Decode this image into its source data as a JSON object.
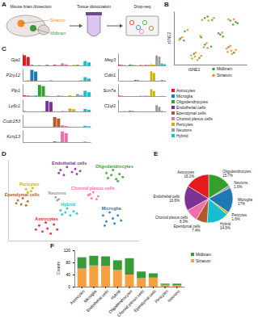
{
  "panels": [
    "A",
    "B",
    "C",
    "D",
    "E",
    "F"
  ],
  "diagram": {
    "steps": [
      "Mouse brain dissection",
      "Tissue dissociation",
      "Drop-seq"
    ],
    "regions": [
      {
        "name": "Striatum",
        "color": "#f28c28"
      },
      {
        "name": "Midbrain",
        "color": "#3a9a3a"
      }
    ]
  },
  "chart_data": [
    {
      "type": "scatter",
      "xlabel": "tSNE1",
      "ylabel": "tSNE2",
      "xlim": [
        -40,
        40
      ],
      "ylim": [
        -40,
        40
      ],
      "tick_labels": false,
      "legend": "bottom right",
      "series": [
        {
          "name": "Midbrain",
          "color": "#3a9a3a",
          "x": [
            -6,
            2,
            22,
            28,
            25,
            -28,
            11,
            14,
            -33,
            -29,
            -10,
            -6,
            1,
            20,
            26,
            -18,
            -12,
            30,
            -3,
            9
          ],
          "y": [
            30,
            27,
            26,
            24,
            20,
            10,
            5,
            2,
            -1,
            -4,
            1,
            -10,
            -13,
            -14,
            -22,
            -24,
            -30,
            22,
            32,
            7
          ]
        },
        {
          "name": "Striatum",
          "color": "#f28c28",
          "x": [
            -9,
            -2,
            4,
            20,
            26,
            -25,
            13,
            -34,
            -31,
            -11,
            -4,
            -7,
            -3,
            18,
            22,
            28,
            24,
            19,
            -21,
            -16,
            -14,
            -20,
            -10,
            -17,
            23
          ],
          "y": [
            27,
            26,
            30,
            28,
            28,
            12,
            8,
            -3,
            1,
            3,
            -8,
            -14,
            -15,
            -16,
            -12,
            -18,
            -24,
            -21,
            -26,
            -22,
            -33,
            -31,
            -27,
            -28,
            -19
          ]
        }
      ]
    },
    {
      "type": "bar",
      "tick_labels": false,
      "ylim": [
        0,
        5
      ],
      "clusters": [
        {
          "name": "Astrocytes",
          "color": "#e41a1c"
        },
        {
          "name": "Microglia",
          "color": "#1f78b4"
        },
        {
          "name": "Oligodendrocytes",
          "color": "#33a02c"
        },
        {
          "name": "Endothelial cells",
          "color": "#7b3294"
        },
        {
          "name": "Ependymal cells",
          "color": "#b15928"
        },
        {
          "name": "Choroid plexus cells",
          "color": "#f06eaa"
        },
        {
          "name": "Pericytes",
          "color": "#c9b400"
        },
        {
          "name": "Neurons",
          "color": "#999999"
        },
        {
          "name": "Hybrid",
          "color": "#17becf"
        }
      ],
      "series": [
        {
          "name": "Gja1",
          "values": [
            4.2,
            3.5,
            0.2,
            0,
            0.1,
            0,
            0.2,
            0,
            0.3,
            0.1,
            0.8,
            0.4,
            0,
            0.2,
            0.3,
            0,
            1.8,
            1.2
          ]
        },
        {
          "name": "P2ry12",
          "values": [
            0,
            0.1,
            4.5,
            3.8,
            0,
            0,
            0,
            0.1,
            0,
            0,
            0,
            0,
            0,
            0,
            0,
            0.2,
            1.5,
            0.9
          ]
        },
        {
          "name": "Plp1",
          "values": [
            0.3,
            0.2,
            0.1,
            0.2,
            4.6,
            4.1,
            0.1,
            0,
            0,
            0.2,
            0.1,
            0,
            0.3,
            0,
            0.8,
            0.4,
            2.2,
            1.6
          ]
        },
        {
          "name": "Ly6c1",
          "values": [
            0.1,
            0,
            0,
            0,
            0,
            0.1,
            4.3,
            3.9,
            0,
            0,
            0.2,
            0.1,
            1.2,
            0.9,
            0,
            0,
            1.0,
            0.7
          ]
        },
        {
          "name": "Ccdc153",
          "values": [
            0,
            0,
            0,
            0,
            0,
            0,
            0,
            0,
            4.0,
            3.4,
            0.6,
            0.3,
            0,
            0,
            0,
            0,
            0.4,
            0.2
          ]
        },
        {
          "name": "Kcnj13",
          "values": [
            0,
            0,
            0,
            0,
            0,
            0,
            0,
            0,
            0.3,
            0.1,
            4.4,
            3.7,
            0,
            0,
            0,
            0,
            0.2,
            0
          ]
        },
        {
          "name": "Meg3",
          "values": [
            0.3,
            0.2,
            0.1,
            0,
            0.4,
            0.2,
            0.1,
            0,
            0.2,
            0.1,
            0.3,
            0.2,
            0.5,
            0.3,
            4.1,
            3.6,
            0.8,
            0.5
          ]
        },
        {
          "name": "Cdkl1",
          "values": [
            0,
            0,
            0,
            0,
            0,
            0,
            0.3,
            0.2,
            0,
            0,
            0,
            0,
            3.9,
            3.2,
            0,
            0,
            0.3,
            0.1
          ]
        },
        {
          "name": "Scn7a",
          "values": [
            0.2,
            0.1,
            0,
            0,
            0,
            0,
            0,
            0,
            0.1,
            0,
            0.2,
            0.1,
            2.8,
            2.1,
            0,
            0,
            0.1,
            0
          ]
        },
        {
          "name": "C1ql1",
          "values": [
            0,
            0,
            0.1,
            0,
            0.3,
            0.2,
            0,
            0,
            0,
            0,
            0,
            0,
            0,
            0,
            2.6,
            1.9,
            0.2,
            0
          ]
        }
      ]
    },
    {
      "type": "scatter",
      "xlim": [
        -40,
        40
      ],
      "ylim": [
        -40,
        40
      ],
      "tick_labels": false,
      "series": [
        {
          "name": "Astrocytes",
          "color": "#e41a1c",
          "x": [
            -21,
            -17,
            -12,
            -10,
            -14,
            -19,
            -23,
            -16
          ],
          "y": [
            -25,
            -22,
            -24,
            -29,
            -33,
            -31,
            -29,
            -28
          ]
        },
        {
          "name": "Microglia",
          "color": "#1f78b4",
          "x": [
            18,
            22,
            27,
            29,
            25,
            20,
            24,
            19
          ],
          "y": [
            -15,
            -12,
            -15,
            -20,
            -23,
            -21,
            -18,
            -25
          ]
        },
        {
          "name": "Oligodendrocytes",
          "color": "#33a02c",
          "x": [
            20,
            24,
            28,
            26,
            21,
            30,
            23,
            27
          ],
          "y": [
            27,
            30,
            26,
            21,
            22,
            23,
            25,
            19
          ]
        },
        {
          "name": "Endothelial cells",
          "color": "#7b3294",
          "x": [
            -8,
            -4,
            1,
            2,
            -6,
            -1,
            -9,
            4
          ],
          "y": [
            30,
            33,
            31,
            26,
            25,
            28,
            27,
            29
          ]
        },
        {
          "name": "Ependymal cells",
          "color": "#b15928",
          "x": [
            -34,
            -31,
            -28,
            -32,
            -29,
            -35
          ],
          "y": [
            0,
            2,
            -1,
            -4,
            -5,
            -3
          ]
        },
        {
          "name": "Choroid plexus cells",
          "color": "#f06eaa",
          "x": [
            9,
            12,
            15,
            11,
            14,
            10
          ],
          "y": [
            5,
            8,
            4,
            2,
            1,
            6
          ]
        },
        {
          "name": "Neurons",
          "color": "#999999",
          "x": [
            -11,
            -9,
            -10
          ],
          "y": [
            3,
            1,
            0
          ]
        },
        {
          "name": "Pericytes",
          "color": "#c9b400",
          "x": [
            -29,
            -26,
            -28,
            -25
          ],
          "y": [
            11,
            9,
            8,
            12
          ]
        },
        {
          "name": "Hybrid",
          "color": "#17becf",
          "x": [
            -8,
            -4,
            0,
            -2,
            -7,
            -5,
            2
          ],
          "y": [
            -10,
            -8,
            -11,
            -15,
            -14,
            -12,
            -13
          ]
        }
      ]
    },
    {
      "type": "pie",
      "data_labels": true,
      "categories": [
        "Oligodendrocytes",
        "Neurons",
        "Microglia",
        "Pericytes",
        "Hybrid",
        "Ependymal cells",
        "Choroid plexus cells",
        "Endothelial cells",
        "Astrocytes"
      ],
      "values": [
        15.7,
        1.6,
        17,
        1.6,
        14.5,
        7.4,
        8.3,
        16.6,
        16.1
      ],
      "value_labels": [
        "15.7%",
        "1.6%",
        "17%",
        "1.6%",
        "14.5%",
        "7.4%",
        "8.3%",
        "16.6%",
        "16.1%"
      ],
      "colors": [
        "#33a02c",
        "#999999",
        "#1f78b4",
        "#c9b400",
        "#17becf",
        "#b15928",
        "#f06eaa",
        "#7b3294",
        "#e41a1c"
      ]
    },
    {
      "type": "bar",
      "stacked": true,
      "ylabel": "Counts",
      "legend": "right",
      "categories": [
        "Astrocytes",
        "Microglia",
        "Endothelial cells",
        "Hybrid",
        "Oligodendrocytes",
        "Choroid plexus cells",
        "Ependymal cells",
        "Pericytes",
        "Neurons"
      ],
      "ylim": [
        0,
        120
      ],
      "yticks": [
        0,
        40,
        80,
        120
      ],
      "series": [
        {
          "name": "Striatum",
          "color": "#f5a142",
          "values": [
            60,
            70,
            68,
            55,
            40,
            28,
            30,
            6,
            5
          ]
        },
        {
          "name": "Midbrain",
          "color": "#3a9a3a",
          "values": [
            37,
            32,
            32,
            32,
            54,
            22,
            14,
            4,
            5
          ]
        }
      ]
    }
  ]
}
